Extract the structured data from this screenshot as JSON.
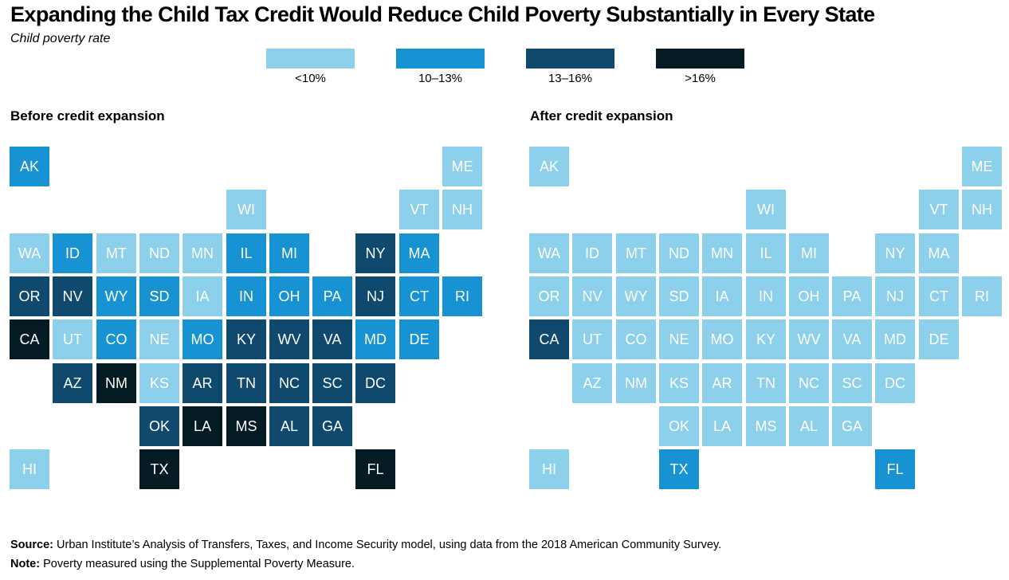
{
  "title": "Expanding the Child Tax Credit Would Reduce Child Poverty Substantially in Every State",
  "subtitle": "Child poverty rate",
  "colors": {
    "lt10": "#8dd0eb",
    "10to13": "#1793d3",
    "13to16": "#0f4a6e",
    "gt16": "#041b24"
  },
  "legend": [
    {
      "label": "<10%",
      "key": "lt10"
    },
    {
      "label": "10–13%",
      "key": "10to13"
    },
    {
      "label": "13–16%",
      "key": "13to16"
    },
    {
      "label": ">16%",
      "key": "gt16"
    }
  ],
  "chart_data": {
    "type": "heatmap",
    "bins": [
      "<10%",
      "10–13%",
      "13–16%",
      ">16%"
    ],
    "panels": [
      {
        "title": "Before credit expansion",
        "states": [
          {
            "state": "AK",
            "row": 0,
            "col": 0,
            "bin": "10–13%"
          },
          {
            "state": "ME",
            "row": 0,
            "col": 10,
            "bin": "<10%"
          },
          {
            "state": "WI",
            "row": 1,
            "col": 5,
            "bin": "<10%"
          },
          {
            "state": "VT",
            "row": 1,
            "col": 9,
            "bin": "<10%"
          },
          {
            "state": "NH",
            "row": 1,
            "col": 10,
            "bin": "<10%"
          },
          {
            "state": "WA",
            "row": 2,
            "col": 0,
            "bin": "<10%"
          },
          {
            "state": "ID",
            "row": 2,
            "col": 1,
            "bin": "10–13%"
          },
          {
            "state": "MT",
            "row": 2,
            "col": 2,
            "bin": "<10%"
          },
          {
            "state": "ND",
            "row": 2,
            "col": 3,
            "bin": "<10%"
          },
          {
            "state": "MN",
            "row": 2,
            "col": 4,
            "bin": "<10%"
          },
          {
            "state": "IL",
            "row": 2,
            "col": 5,
            "bin": "10–13%"
          },
          {
            "state": "MI",
            "row": 2,
            "col": 6,
            "bin": "10–13%"
          },
          {
            "state": "NY",
            "row": 2,
            "col": 8,
            "bin": "13–16%"
          },
          {
            "state": "MA",
            "row": 2,
            "col": 9,
            "bin": "10–13%"
          },
          {
            "state": "OR",
            "row": 3,
            "col": 0,
            "bin": "13–16%"
          },
          {
            "state": "NV",
            "row": 3,
            "col": 1,
            "bin": "13–16%"
          },
          {
            "state": "WY",
            "row": 3,
            "col": 2,
            "bin": "10–13%"
          },
          {
            "state": "SD",
            "row": 3,
            "col": 3,
            "bin": "10–13%"
          },
          {
            "state": "IA",
            "row": 3,
            "col": 4,
            "bin": "<10%"
          },
          {
            "state": "IN",
            "row": 3,
            "col": 5,
            "bin": "10–13%"
          },
          {
            "state": "OH",
            "row": 3,
            "col": 6,
            "bin": "10–13%"
          },
          {
            "state": "PA",
            "row": 3,
            "col": 7,
            "bin": "10–13%"
          },
          {
            "state": "NJ",
            "row": 3,
            "col": 8,
            "bin": "13–16%"
          },
          {
            "state": "CT",
            "row": 3,
            "col": 9,
            "bin": "10–13%"
          },
          {
            "state": "RI",
            "row": 3,
            "col": 10,
            "bin": "10–13%"
          },
          {
            "state": "CA",
            "row": 4,
            "col": 0,
            "bin": ">16%"
          },
          {
            "state": "UT",
            "row": 4,
            "col": 1,
            "bin": "<10%"
          },
          {
            "state": "CO",
            "row": 4,
            "col": 2,
            "bin": "10–13%"
          },
          {
            "state": "NE",
            "row": 4,
            "col": 3,
            "bin": "<10%"
          },
          {
            "state": "MO",
            "row": 4,
            "col": 4,
            "bin": "10–13%"
          },
          {
            "state": "KY",
            "row": 4,
            "col": 5,
            "bin": "13–16%"
          },
          {
            "state": "WV",
            "row": 4,
            "col": 6,
            "bin": "13–16%"
          },
          {
            "state": "VA",
            "row": 4,
            "col": 7,
            "bin": "13–16%"
          },
          {
            "state": "MD",
            "row": 4,
            "col": 8,
            "bin": "10–13%"
          },
          {
            "state": "DE",
            "row": 4,
            "col": 9,
            "bin": "10–13%"
          },
          {
            "state": "AZ",
            "row": 5,
            "col": 1,
            "bin": "13–16%"
          },
          {
            "state": "NM",
            "row": 5,
            "col": 2,
            "bin": ">16%"
          },
          {
            "state": "KS",
            "row": 5,
            "col": 3,
            "bin": "<10%"
          },
          {
            "state": "AR",
            "row": 5,
            "col": 4,
            "bin": "13–16%"
          },
          {
            "state": "TN",
            "row": 5,
            "col": 5,
            "bin": "13–16%"
          },
          {
            "state": "NC",
            "row": 5,
            "col": 6,
            "bin": "13–16%"
          },
          {
            "state": "SC",
            "row": 5,
            "col": 7,
            "bin": "13–16%"
          },
          {
            "state": "DC",
            "row": 5,
            "col": 8,
            "bin": "13–16%"
          },
          {
            "state": "OK",
            "row": 6,
            "col": 3,
            "bin": "13–16%"
          },
          {
            "state": "LA",
            "row": 6,
            "col": 4,
            "bin": ">16%"
          },
          {
            "state": "MS",
            "row": 6,
            "col": 5,
            "bin": ">16%"
          },
          {
            "state": "AL",
            "row": 6,
            "col": 6,
            "bin": "13–16%"
          },
          {
            "state": "GA",
            "row": 6,
            "col": 7,
            "bin": "13–16%"
          },
          {
            "state": "HI",
            "row": 7,
            "col": 0,
            "bin": "<10%"
          },
          {
            "state": "TX",
            "row": 7,
            "col": 3,
            "bin": ">16%"
          },
          {
            "state": "FL",
            "row": 7,
            "col": 8,
            "bin": ">16%"
          }
        ]
      },
      {
        "title": "After credit expansion",
        "states": [
          {
            "state": "AK",
            "row": 0,
            "col": 0,
            "bin": "<10%"
          },
          {
            "state": "ME",
            "row": 0,
            "col": 10,
            "bin": "<10%"
          },
          {
            "state": "WI",
            "row": 1,
            "col": 5,
            "bin": "<10%"
          },
          {
            "state": "VT",
            "row": 1,
            "col": 9,
            "bin": "<10%"
          },
          {
            "state": "NH",
            "row": 1,
            "col": 10,
            "bin": "<10%"
          },
          {
            "state": "WA",
            "row": 2,
            "col": 0,
            "bin": "<10%"
          },
          {
            "state": "ID",
            "row": 2,
            "col": 1,
            "bin": "<10%"
          },
          {
            "state": "MT",
            "row": 2,
            "col": 2,
            "bin": "<10%"
          },
          {
            "state": "ND",
            "row": 2,
            "col": 3,
            "bin": "<10%"
          },
          {
            "state": "MN",
            "row": 2,
            "col": 4,
            "bin": "<10%"
          },
          {
            "state": "IL",
            "row": 2,
            "col": 5,
            "bin": "<10%"
          },
          {
            "state": "MI",
            "row": 2,
            "col": 6,
            "bin": "<10%"
          },
          {
            "state": "NY",
            "row": 2,
            "col": 8,
            "bin": "<10%"
          },
          {
            "state": "MA",
            "row": 2,
            "col": 9,
            "bin": "<10%"
          },
          {
            "state": "OR",
            "row": 3,
            "col": 0,
            "bin": "<10%"
          },
          {
            "state": "NV",
            "row": 3,
            "col": 1,
            "bin": "<10%"
          },
          {
            "state": "WY",
            "row": 3,
            "col": 2,
            "bin": "<10%"
          },
          {
            "state": "SD",
            "row": 3,
            "col": 3,
            "bin": "<10%"
          },
          {
            "state": "IA",
            "row": 3,
            "col": 4,
            "bin": "<10%"
          },
          {
            "state": "IN",
            "row": 3,
            "col": 5,
            "bin": "<10%"
          },
          {
            "state": "OH",
            "row": 3,
            "col": 6,
            "bin": "<10%"
          },
          {
            "state": "PA",
            "row": 3,
            "col": 7,
            "bin": "<10%"
          },
          {
            "state": "NJ",
            "row": 3,
            "col": 8,
            "bin": "<10%"
          },
          {
            "state": "CT",
            "row": 3,
            "col": 9,
            "bin": "<10%"
          },
          {
            "state": "RI",
            "row": 3,
            "col": 10,
            "bin": "<10%"
          },
          {
            "state": "CA",
            "row": 4,
            "col": 0,
            "bin": "13–16%"
          },
          {
            "state": "UT",
            "row": 4,
            "col": 1,
            "bin": "<10%"
          },
          {
            "state": "CO",
            "row": 4,
            "col": 2,
            "bin": "<10%"
          },
          {
            "state": "NE",
            "row": 4,
            "col": 3,
            "bin": "<10%"
          },
          {
            "state": "MO",
            "row": 4,
            "col": 4,
            "bin": "<10%"
          },
          {
            "state": "KY",
            "row": 4,
            "col": 5,
            "bin": "<10%"
          },
          {
            "state": "WV",
            "row": 4,
            "col": 6,
            "bin": "<10%"
          },
          {
            "state": "VA",
            "row": 4,
            "col": 7,
            "bin": "<10%"
          },
          {
            "state": "MD",
            "row": 4,
            "col": 8,
            "bin": "<10%"
          },
          {
            "state": "DE",
            "row": 4,
            "col": 9,
            "bin": "<10%"
          },
          {
            "state": "AZ",
            "row": 5,
            "col": 1,
            "bin": "<10%"
          },
          {
            "state": "NM",
            "row": 5,
            "col": 2,
            "bin": "<10%"
          },
          {
            "state": "KS",
            "row": 5,
            "col": 3,
            "bin": "<10%"
          },
          {
            "state": "AR",
            "row": 5,
            "col": 4,
            "bin": "<10%"
          },
          {
            "state": "TN",
            "row": 5,
            "col": 5,
            "bin": "<10%"
          },
          {
            "state": "NC",
            "row": 5,
            "col": 6,
            "bin": "<10%"
          },
          {
            "state": "SC",
            "row": 5,
            "col": 7,
            "bin": "<10%"
          },
          {
            "state": "DC",
            "row": 5,
            "col": 8,
            "bin": "<10%"
          },
          {
            "state": "OK",
            "row": 6,
            "col": 3,
            "bin": "<10%"
          },
          {
            "state": "LA",
            "row": 6,
            "col": 4,
            "bin": "<10%"
          },
          {
            "state": "MS",
            "row": 6,
            "col": 5,
            "bin": "<10%"
          },
          {
            "state": "AL",
            "row": 6,
            "col": 6,
            "bin": "<10%"
          },
          {
            "state": "GA",
            "row": 6,
            "col": 7,
            "bin": "<10%"
          },
          {
            "state": "HI",
            "row": 7,
            "col": 0,
            "bin": "<10%"
          },
          {
            "state": "TX",
            "row": 7,
            "col": 3,
            "bin": "10–13%"
          },
          {
            "state": "FL",
            "row": 7,
            "col": 8,
            "bin": "10–13%"
          }
        ]
      }
    ]
  },
  "footer": {
    "source_label": "Source:",
    "source_text": " Urban Institute’s Analysis of Transfers, Taxes, and Income Security model, using data from the 2018 American Community Survey.",
    "note_label": "Note:",
    "note_text": " Poverty measured using the Supplemental Poverty Measure."
  }
}
